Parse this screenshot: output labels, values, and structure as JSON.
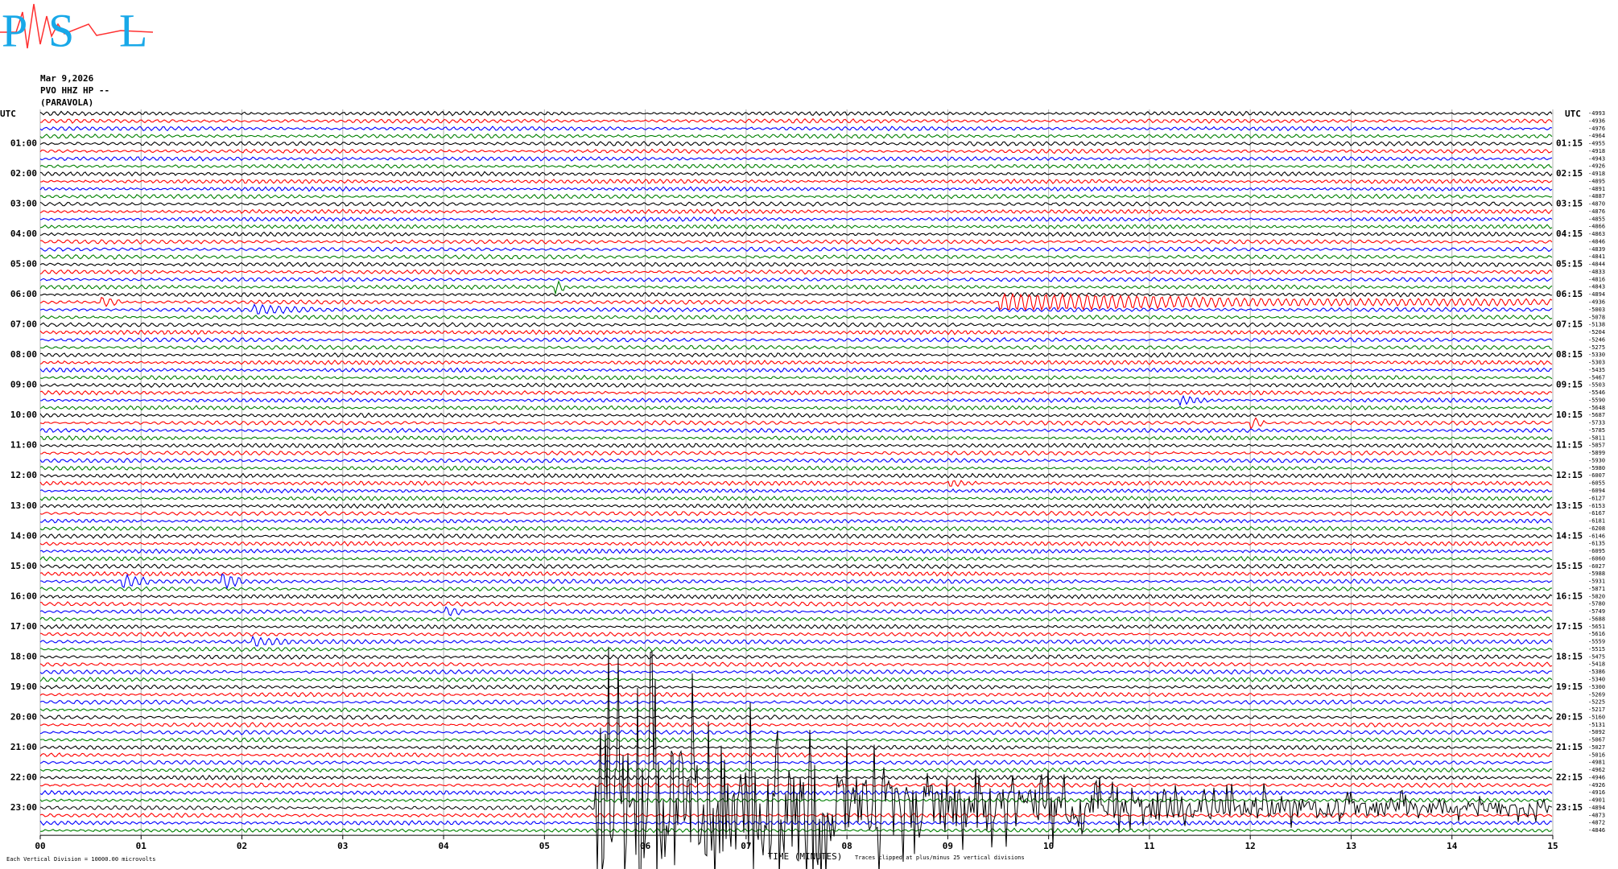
{
  "header": {
    "logo": [
      "P",
      "S",
      "L"
    ],
    "date": "Mar 9,2026",
    "station": "PVO HHZ HP --",
    "site": "(PARAVOLA)"
  },
  "chart_data": {
    "type": "helicorder",
    "utc_label": "UTC",
    "row_labels_left": [
      "01:00",
      "02:00",
      "03:00",
      "04:00",
      "05:00",
      "06:00",
      "07:00",
      "08:00",
      "09:00",
      "10:00",
      "11:00",
      "12:00",
      "13:00",
      "14:00",
      "15:00",
      "16:00",
      "17:00",
      "18:00",
      "19:00",
      "20:00",
      "21:00",
      "22:00",
      "23:00"
    ],
    "row_labels_right": [
      "01:15",
      "02:15",
      "03:15",
      "04:15",
      "05:15",
      "06:15",
      "07:15",
      "08:15",
      "09:15",
      "10:15",
      "11:15",
      "12:15",
      "13:15",
      "14:15",
      "15:15",
      "16:15",
      "17:15",
      "18:15",
      "19:15",
      "20:15",
      "21:15",
      "22:15",
      "23:15"
    ],
    "row_offsets": [
      -4993,
      -4936,
      -4976,
      -4964,
      -4955,
      -4918,
      -4943,
      -4926,
      -4918,
      -4895,
      -4891,
      -4887,
      -4870,
      -4876,
      -4855,
      -4866,
      -4863,
      -4846,
      -4839,
      -4841,
      -4844,
      -4833,
      -4816,
      -4843,
      -4894,
      -4936,
      -5003,
      -5078,
      -5138,
      -5204,
      -5246,
      -5275,
      -5330,
      -5303,
      -5435,
      -5467,
      -5503,
      -5546,
      -5590,
      -5648,
      -5687,
      -5733,
      -5785,
      -5811,
      -5857,
      -5899,
      -5930,
      -5980,
      -6007,
      -6055,
      -6094,
      -6127,
      -6153,
      -6167,
      -6181,
      -6208,
      -6146,
      -6135,
      -6095,
      -6060,
      -6027,
      -5988,
      -5931,
      -5871,
      -5820,
      -5780,
      -5749,
      -5688,
      -5651,
      -5616,
      -5559,
      -5515,
      -5475,
      -5418,
      -5386,
      -5340,
      -5300,
      -5269,
      -5225,
      -5217,
      -5160,
      -5131,
      -5092,
      -5067,
      -5027,
      -5016,
      -4981,
      -4962,
      -4946,
      -4926,
      -4916,
      -4901,
      -4894,
      -4873,
      -4872,
      -4846
    ],
    "trace_colors": [
      "#000000",
      "#ff0000",
      "#0000ff",
      "#008000"
    ],
    "xlim": [
      0,
      15
    ],
    "xticks": [
      {
        "value": 0,
        "label": "00"
      },
      {
        "value": 1,
        "label": "01"
      },
      {
        "value": 2,
        "label": "02"
      },
      {
        "value": 3,
        "label": "03"
      },
      {
        "value": 4,
        "label": "04"
      },
      {
        "value": 5,
        "label": "05"
      },
      {
        "value": 6,
        "label": "06"
      },
      {
        "value": 7,
        "label": "07"
      },
      {
        "value": 8,
        "label": "08"
      },
      {
        "value": 9,
        "label": "09"
      },
      10,
      11,
      12,
      13,
      14,
      15
    ],
    "xlabel": "TIME (MINUTES)",
    "notes": [
      "Each Vertical Division = 10000.00 microvolts",
      "Traces clipped at plus/minus 25 vertical divisions"
    ],
    "grid": true
  }
}
